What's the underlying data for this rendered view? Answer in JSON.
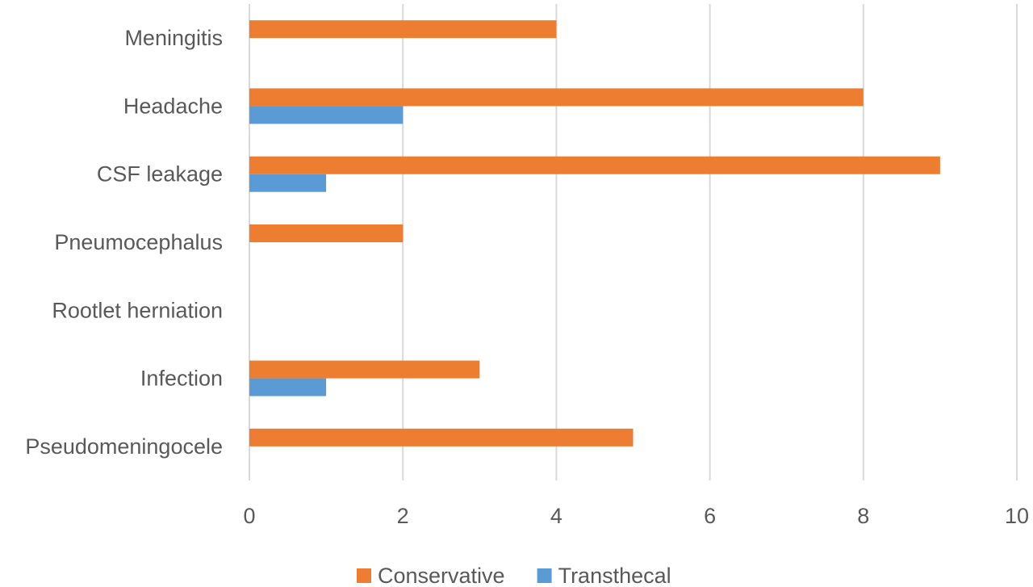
{
  "chart_data": {
    "type": "bar",
    "orientation": "horizontal",
    "categories": [
      "Meningitis",
      "Headache",
      "CSF leakage",
      "Pneumocephalus",
      "Rootlet herniation",
      "Infection",
      "Pseudomeningocele"
    ],
    "series": [
      {
        "name": "Conservative",
        "color": "#ed7d31",
        "values": [
          4,
          8,
          9,
          2,
          0,
          3,
          5
        ]
      },
      {
        "name": "Transthecal",
        "color": "#5b9bd5",
        "values": [
          0,
          2,
          1,
          0,
          0,
          1,
          0
        ]
      }
    ],
    "xlim": [
      0,
      10
    ],
    "xticks": [
      "0",
      "2",
      "4",
      "6",
      "8",
      "10"
    ],
    "grid": true,
    "legend_position": "bottom"
  }
}
